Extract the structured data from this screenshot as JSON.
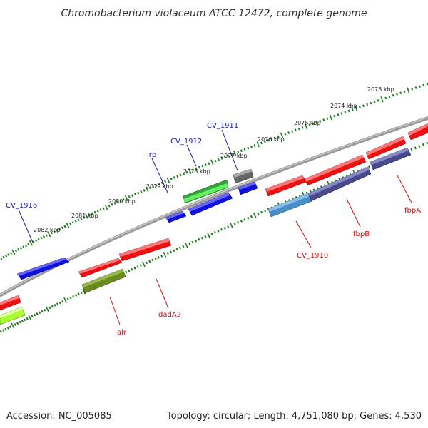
{
  "title": "Chromobacterium violaceum ATCC 12472, complete genome",
  "footer": {
    "accession": "Accession: NC_005085",
    "topology": "Topology: circular; Length: 4,751,080 bp; Genes: 4,530"
  },
  "ticks": [
    "2082 kbp",
    "2081 kbp",
    "2080 kbp",
    "2079 kbp",
    "2078 kbp",
    "2077 kbp",
    "2076 kbp",
    "2075 kbp",
    "2074 kbp",
    "2073 kbp"
  ],
  "labels_top": [
    "CV_1916",
    "lrp",
    "CV_1912",
    "CV_1911"
  ],
  "labels_bottom": [
    "alr",
    "dadA2",
    "CV_1910",
    "fbpB",
    "fbpA"
  ],
  "colors": {
    "backbone": "#808080",
    "tick": "#1f7a1f",
    "label_top": "#1a1aa6",
    "label_bottom": "#cc1111",
    "red": "#ee1111",
    "blue": "#1111ee",
    "green": "#33bb33",
    "gray": "#666666",
    "olive": "#6b8a1f",
    "lime": "#aaff33",
    "steelblue": "#4a8ec7",
    "slate": "#4a4a8a"
  }
}
